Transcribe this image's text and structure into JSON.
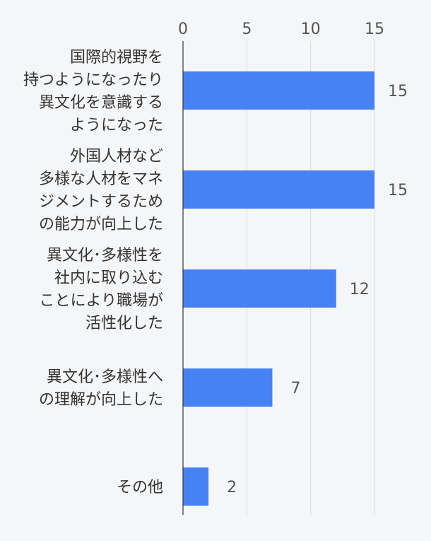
{
  "chart_data": {
    "type": "bar",
    "orientation": "horizontal",
    "title": "",
    "xlabel": "",
    "ylabel": "",
    "xlim": [
      0,
      17.5
    ],
    "ticks": [
      0,
      5,
      10,
      15
    ],
    "tick_position": "top",
    "grid": true,
    "bar_color": "#4782f5",
    "categories": [
      [
        "国際的視野を",
        "持つようになったり",
        "異文化を意識する",
        "ようになった"
      ],
      [
        "外国人材など",
        "多様な人材をマネ",
        "ジメントするため",
        "の能力が向上した"
      ],
      [
        "異文化･多様性を",
        "社内に取り込む",
        "ことにより職場が",
        "活性化した"
      ],
      [
        "異文化･多様性へ",
        "の理解が向上した"
      ],
      [
        "その他"
      ]
    ],
    "values": [
      15,
      15,
      12,
      7,
      2
    ]
  }
}
